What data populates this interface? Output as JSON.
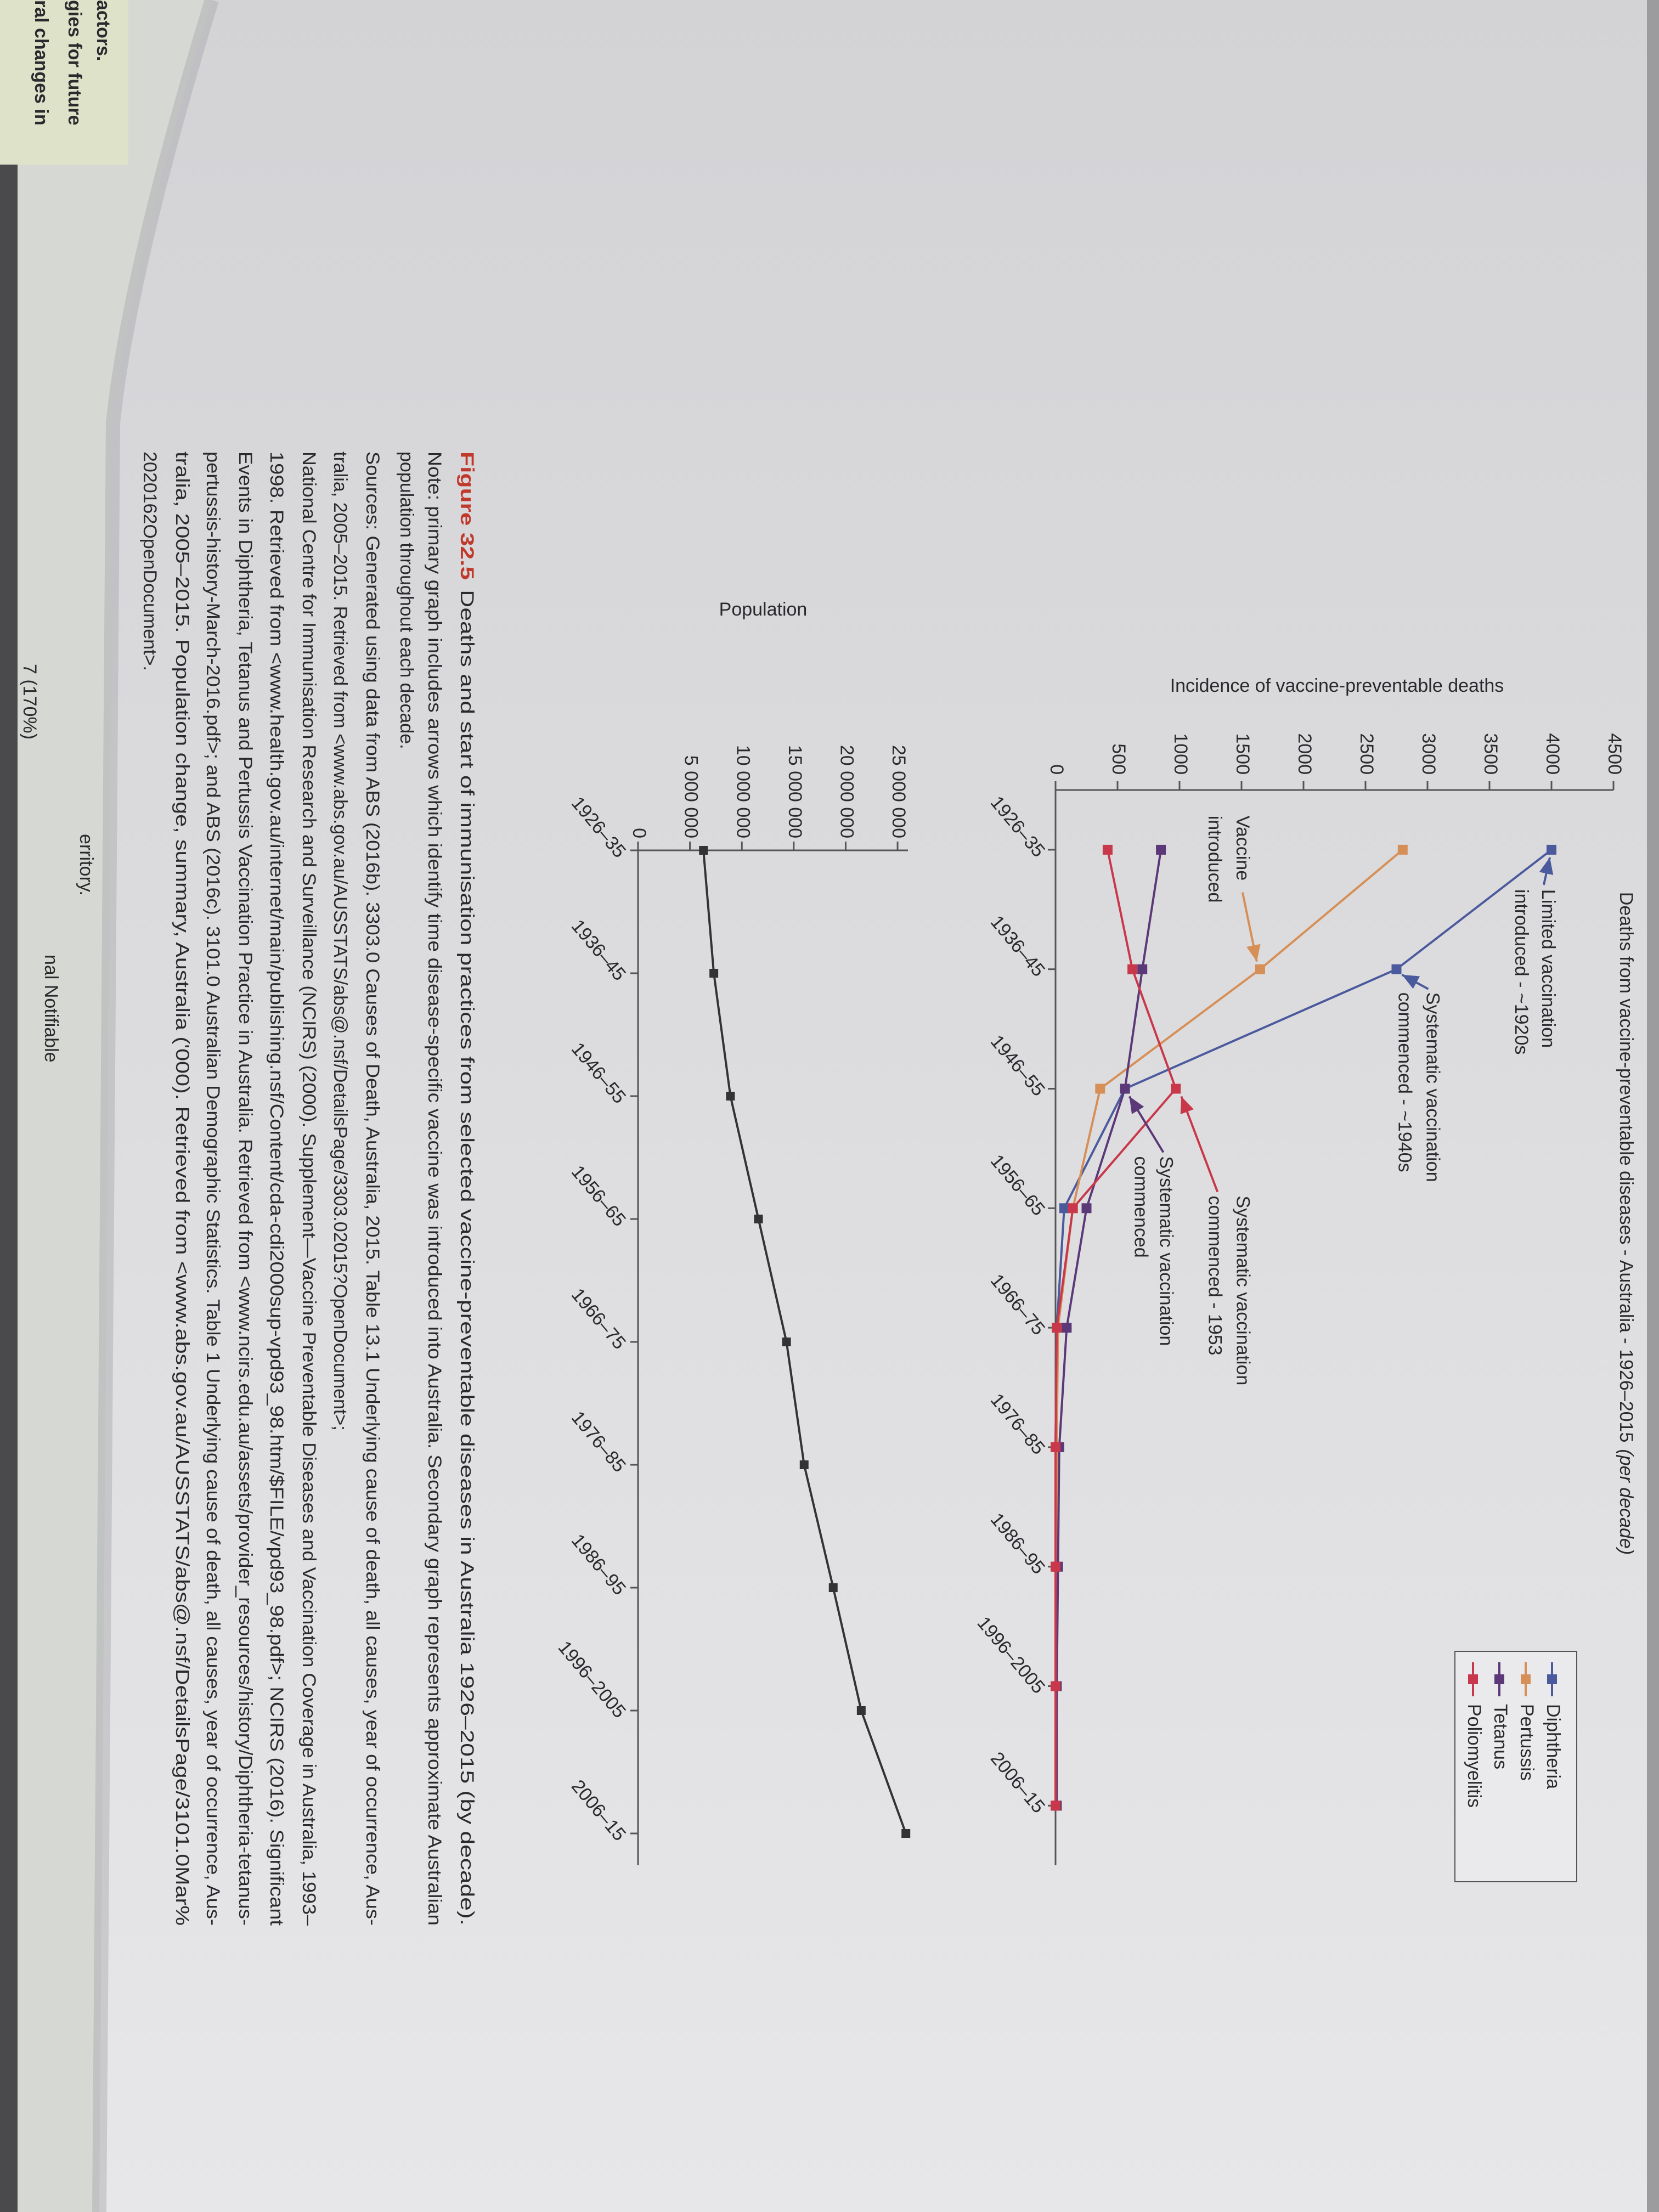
{
  "chart_data": [
    {
      "type": "line",
      "title": "Deaths from vaccine-preventable diseases - Australia - 1926–2015",
      "title_note": "(per decade)",
      "y_label": "Incidence of vaccine-preventable deaths",
      "categories": [
        "1926–35",
        "1936–45",
        "1946–55",
        "1956–65",
        "1966–75",
        "1976–85",
        "1986–95",
        "1996–2005",
        "2006–15"
      ],
      "series": [
        {
          "name": "Diphtheria",
          "color": "#4b5a9c",
          "values": [
            4000,
            2750,
            560,
            70,
            10,
            0,
            0,
            0,
            0
          ]
        },
        {
          "name": "Pertussis",
          "color": "#d68f56",
          "values": [
            2800,
            1650,
            360,
            140,
            20,
            10,
            10,
            10,
            10
          ]
        },
        {
          "name": "Tetanus",
          "color": "#5b3878",
          "values": [
            850,
            700,
            560,
            250,
            90,
            30,
            20,
            10,
            10
          ]
        },
        {
          "name": "Poliomyelitis",
          "color": "#c9384a",
          "values": [
            420,
            620,
            970,
            140,
            10,
            0,
            0,
            0,
            0
          ]
        }
      ],
      "ylim": [
        0,
        4500
      ],
      "yticks": [
        0,
        500,
        1000,
        1500,
        2000,
        2500,
        3000,
        3500,
        4000,
        4500
      ],
      "annotations": [
        [
          "Limited vaccination",
          "introduced - ~1920s"
        ],
        [
          "Systematic vaccination",
          "commenced - ~1940s"
        ],
        [
          "Vaccine",
          "introduced"
        ],
        [
          "Systematic vaccination",
          "commenced - 1953"
        ],
        [
          "Systematic vaccination",
          "commenced"
        ]
      ]
    },
    {
      "type": "line",
      "y_label": "Population",
      "categories": [
        "1926–35",
        "1936–45",
        "1946–55",
        "1956–65",
        "1966–75",
        "1976–85",
        "1986–95",
        "1996–2005",
        "2006–15"
      ],
      "color": "#333336",
      "values": [
        6300000,
        7300000,
        8900000,
        11600000,
        14300000,
        16000000,
        18800000,
        21500000,
        25800000
      ],
      "ylim": [
        0,
        26000000
      ],
      "yticks": [
        0,
        {
          "value": 5000000,
          "label": "5 000 000"
        },
        {
          "value": 10000000,
          "label": "10 000 000"
        },
        {
          "value": 15000000,
          "label": "15 000 000"
        },
        {
          "value": 20000000,
          "label": "20 000 000"
        },
        {
          "value": 25000000,
          "label": "25 000 000"
        }
      ]
    }
  ],
  "caption": {
    "figure": "Figure 32.5",
    "title": "Deaths and start of immunisation practices from selected vaccine-preventable diseases in Australia 1926–2015 (by decade).",
    "lines": [
      "Note: primary graph includes arrows which identify time disease-specific vaccine was introduced into Australia. Secondary graph represents approximate Australian",
      "population throughout each decade.",
      "Sources: Generated using data from ABS (2016b). 3303.0 Causes of Death, Australia, 2015. Table 13.1 Underlying cause of death, all causes, year of occurrence, Aus-",
      "tralia, 2005–2015. Retrieved from <www.abs.gov.au/AUSSTATS/abs@.nsf/DetailsPage/3303.02015?OpenDocument>;",
      "National Centre for Immunisation Research and Surveillance (NCIRS) (2000). Supplement—Vaccine Preventable Diseases and Vaccination Coverage in Australia, 1993–",
      "1998. Retrieved from <www.health.gov.au/internet/main/publishing.nsf/Content/cda-cdi2000sup-vpd93_98.htm/$FILE/vpd93_98.pdf>; NCIRS (2016). Significant",
      "Events in Diphtheria, Tetanus and Pertussis Vaccination Practice in Australia. Retrieved from <www.ncirs.edu.au/assets/provider_resources/history/Diphtheria-tetanus-",
      "pertussis-history-March-2016.pdf>; and ABS (2016c). 3101.0 Australian Demographic Statistics. Table 1 Underlying cause of death, all causes, year of occurrence, Aus-",
      "tralia, 2005–2015. Population change, summary, Australia ('000). Retrieved from <www.abs.gov.au/AUSSTATS/abs@.nsf/DetailsPage/3101.0Mar%",
      "2020162OpenDocument>."
    ]
  },
  "left_page": [
    "actors.",
    "gies for future",
    "ral changes in",
    "7 (170%)",
    "erritory.",
    "nal Notifiable"
  ]
}
